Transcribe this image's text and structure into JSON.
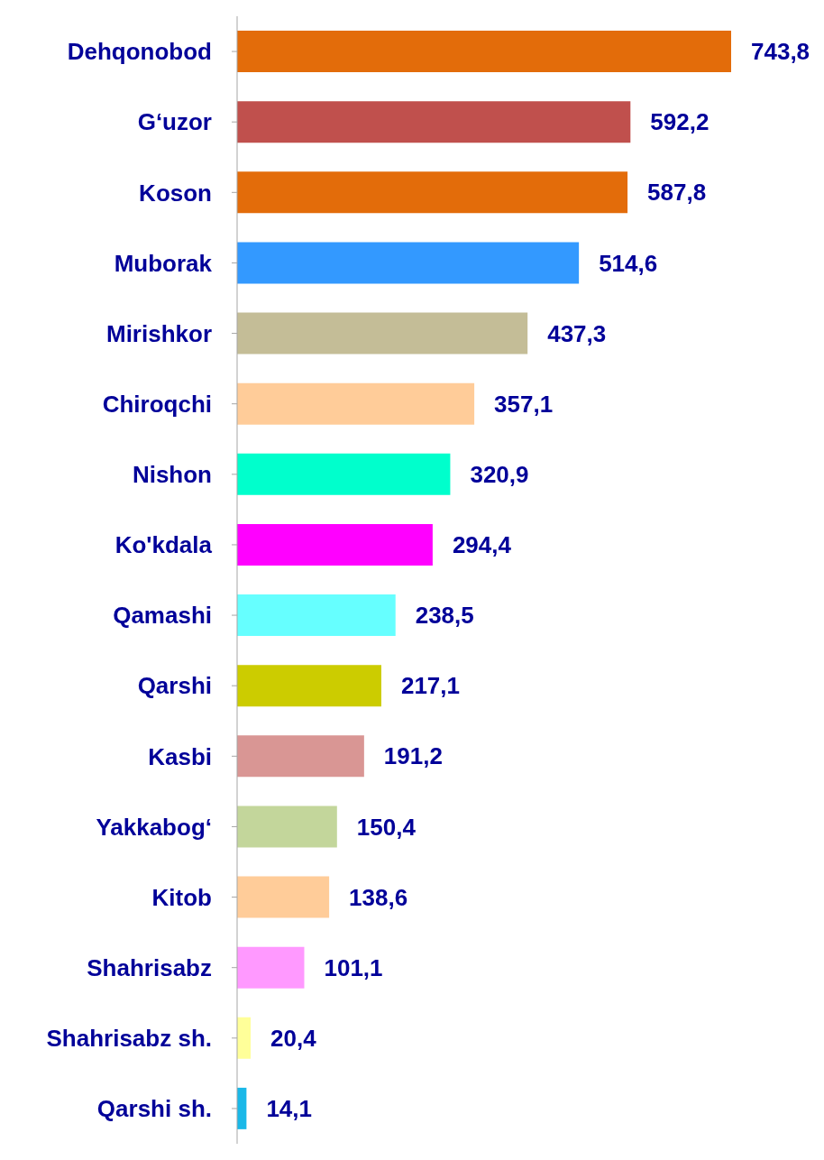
{
  "chart_data": {
    "type": "bar",
    "orientation": "horizontal",
    "categories": [
      "Dehqonobod",
      "G‘uzor",
      "Koson",
      "Muborak",
      "Mirishkor",
      "Chiroqchi",
      "Nishon",
      "Ko'kdala",
      "Qamashi",
      "Qarshi",
      "Kasbi",
      "Yakkabog‘",
      "Kitob",
      "Shahrisabz",
      "Shahrisabz sh.",
      "Qarshi sh."
    ],
    "values": [
      743.8,
      592.2,
      587.8,
      514.6,
      437.3,
      357.1,
      320.9,
      294.4,
      238.5,
      217.1,
      191.2,
      150.4,
      138.6,
      101.1,
      20.4,
      14.1
    ],
    "value_labels": [
      "743,8",
      "592,2",
      "587,8",
      "514,6",
      "437,3",
      "357,1",
      "320,9",
      "294,4",
      "238,5",
      "217,1",
      "191,2",
      "150,4",
      "138,6",
      "101,1",
      "20,4",
      "14,1"
    ],
    "colors": [
      "#e36c0a",
      "#c0504d",
      "#e36c0a",
      "#3399ff",
      "#c4bd97",
      "#ffcc99",
      "#00ffcc",
      "#ff00ff",
      "#66ffff",
      "#cccc00",
      "#d99694",
      "#c3d69b",
      "#ffcc99",
      "#ff99ff",
      "#ffff99",
      "#1ab8e8"
    ],
    "grid": false,
    "legend": false,
    "tick_labels": "y"
  }
}
